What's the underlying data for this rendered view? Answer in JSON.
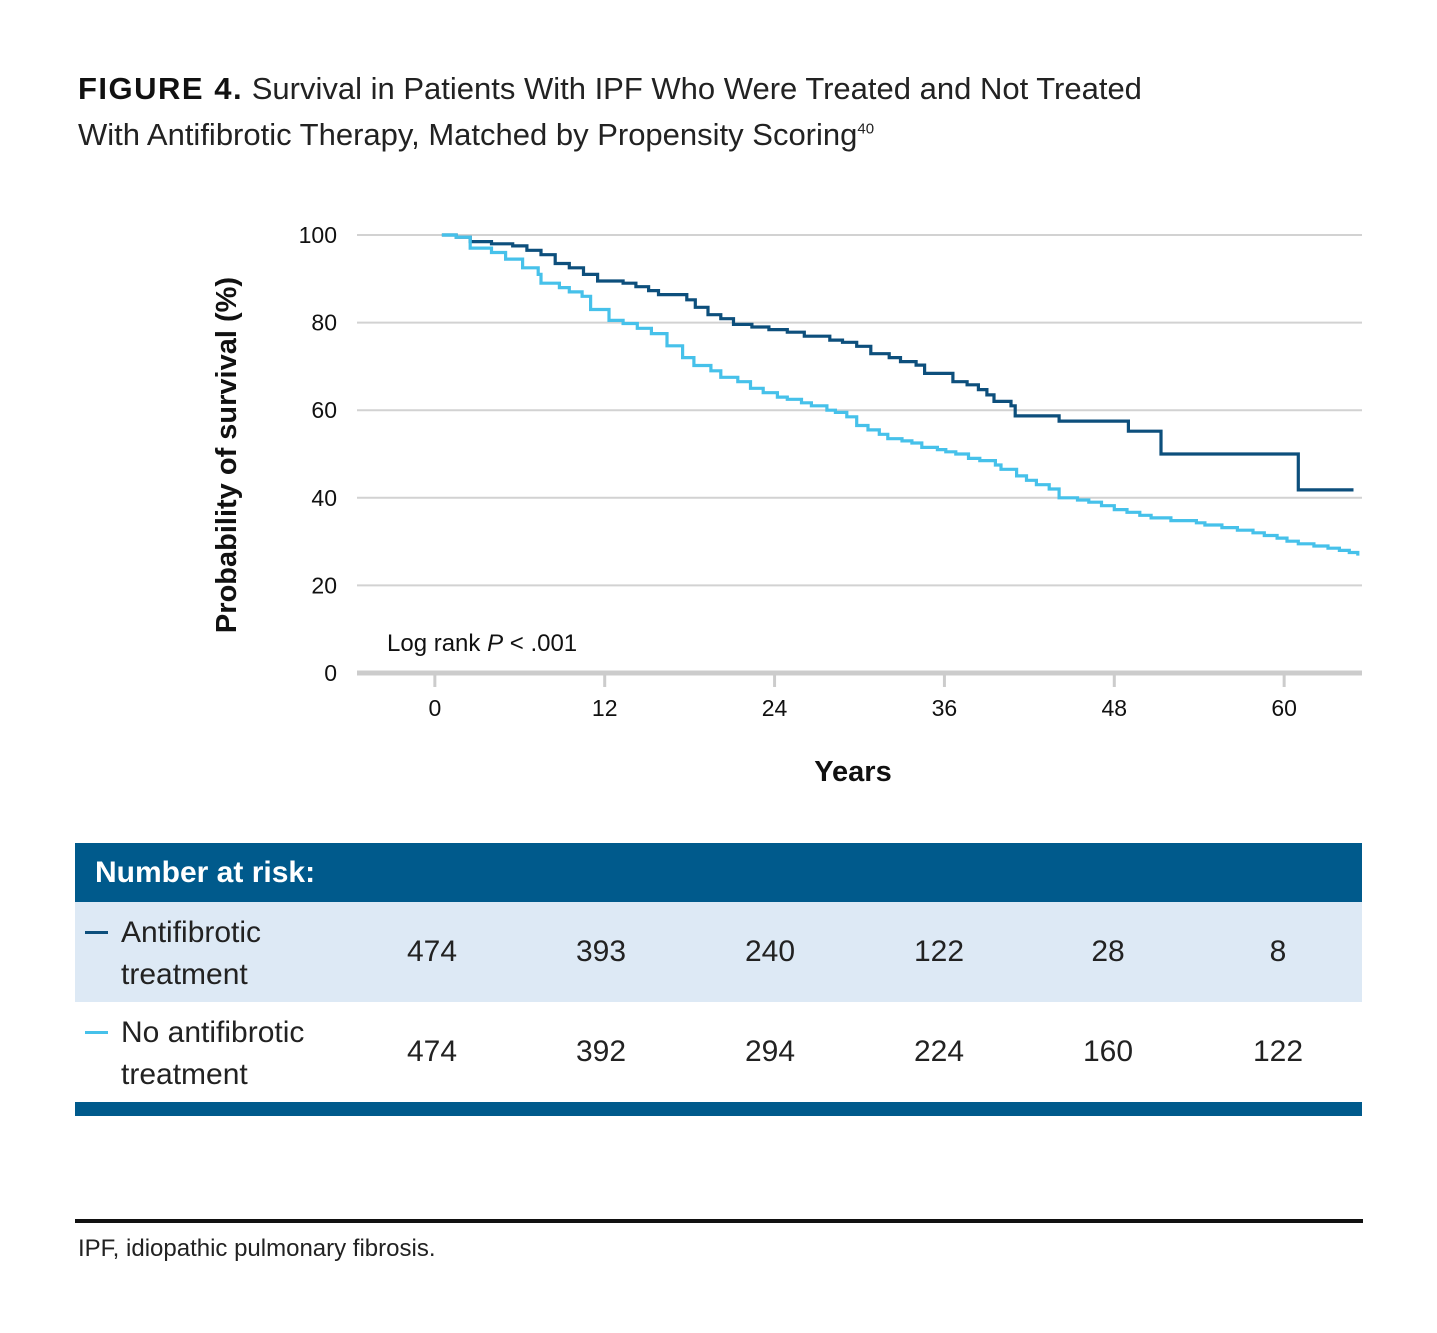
{
  "figure": {
    "label": "FIGURE 4.",
    "title_line1": "Survival in Patients With IPF Who Were Treated and Not Treated",
    "title_line2": "With Antifibrotic Therapy, Matched by Propensity Scoring",
    "reference": "40"
  },
  "colors": {
    "dark_series": "#0d4f7c",
    "light_series": "#46c1ea",
    "grid": "#d2d2d2",
    "axis": "#cccccc",
    "header_bg": "#005a8c",
    "row_shade": "#dde9f5"
  },
  "chart_data": {
    "type": "line",
    "step": true,
    "ylabel": "Probability of survival (%)",
    "xlabel": "Years",
    "xlim": [
      -5.5,
      65.5
    ],
    "ylim": [
      0,
      100
    ],
    "x_ticks": [
      "0",
      "12",
      "24",
      "36",
      "48",
      "60"
    ],
    "y_ticks": [
      "0",
      "20",
      "40",
      "60",
      "80",
      "100"
    ],
    "annotation": {
      "prefix": "Log rank ",
      "p_symbol": "P",
      "suffix": " < .001"
    },
    "series": [
      {
        "name": "Antifibrotic treatment",
        "color": "#0d4f7c",
        "points": [
          [
            0.5,
            100
          ],
          [
            1.5,
            99.5
          ],
          [
            2.5,
            98.5
          ],
          [
            4,
            98
          ],
          [
            5.5,
            97.5
          ],
          [
            6.5,
            96.5
          ],
          [
            7.5,
            95.5
          ],
          [
            8.5,
            93.5
          ],
          [
            9.5,
            92.5
          ],
          [
            10.5,
            91
          ],
          [
            11.5,
            89.5
          ],
          [
            13.3,
            89
          ],
          [
            14.2,
            88.2
          ],
          [
            15.1,
            87.3
          ],
          [
            15.8,
            86.4
          ],
          [
            17.8,
            85.2
          ],
          [
            18.4,
            83.5
          ],
          [
            19.3,
            81.8
          ],
          [
            20.2,
            80.9
          ],
          [
            21.1,
            79.6
          ],
          [
            22.4,
            79
          ],
          [
            23.6,
            78.4
          ],
          [
            24.9,
            77.8
          ],
          [
            26.1,
            76.9
          ],
          [
            27.9,
            76
          ],
          [
            28.8,
            75.5
          ],
          [
            29.8,
            74.6
          ],
          [
            30.8,
            72.9
          ],
          [
            32.1,
            72
          ],
          [
            32.9,
            71.1
          ],
          [
            34.0,
            70.3
          ],
          [
            34.6,
            68.4
          ],
          [
            36.6,
            66.5
          ],
          [
            37.6,
            65.8
          ],
          [
            38.4,
            64.7
          ],
          [
            39.0,
            63.5
          ],
          [
            39.5,
            62
          ],
          [
            40.7,
            61
          ],
          [
            41.0,
            58.7
          ],
          [
            44.1,
            57.5
          ],
          [
            49.0,
            55.2
          ],
          [
            50.7,
            55.2
          ],
          [
            51.3,
            50
          ],
          [
            60.8,
            50
          ],
          [
            61.0,
            41.8
          ],
          [
            64.9,
            41.8
          ]
        ]
      },
      {
        "name": "No antifibrotic treatment",
        "color": "#46c1ea",
        "points": [
          [
            0.5,
            100
          ],
          [
            1.5,
            99.5
          ],
          [
            2.5,
            97
          ],
          [
            4,
            96
          ],
          [
            5,
            94.5
          ],
          [
            6.2,
            92.5
          ],
          [
            7.3,
            91
          ],
          [
            7.5,
            89
          ],
          [
            8.8,
            88
          ],
          [
            9.5,
            87
          ],
          [
            10.4,
            86
          ],
          [
            11.0,
            83
          ],
          [
            12.3,
            80.5
          ],
          [
            13.3,
            79.8
          ],
          [
            14.3,
            78.7
          ],
          [
            15.3,
            77.5
          ],
          [
            16.4,
            74.7
          ],
          [
            17.5,
            72
          ],
          [
            18.3,
            70.2
          ],
          [
            19.5,
            69
          ],
          [
            20.2,
            67.5
          ],
          [
            21.4,
            66.5
          ],
          [
            22.3,
            65
          ],
          [
            23.2,
            64
          ],
          [
            24.2,
            63
          ],
          [
            24.9,
            62.5
          ],
          [
            25.9,
            61.7
          ],
          [
            26.6,
            61
          ],
          [
            27.7,
            60
          ],
          [
            28.3,
            59.5
          ],
          [
            29.1,
            58.5
          ],
          [
            29.8,
            56.5
          ],
          [
            30.6,
            55.5
          ],
          [
            31.4,
            54.5
          ],
          [
            32.0,
            53.5
          ],
          [
            33.0,
            53
          ],
          [
            33.7,
            52.5
          ],
          [
            34.4,
            51.5
          ],
          [
            35.5,
            51
          ],
          [
            36.1,
            50.5
          ],
          [
            36.8,
            50
          ],
          [
            37.7,
            49
          ],
          [
            38.5,
            48.5
          ],
          [
            39.6,
            47.5
          ],
          [
            40.0,
            46.5
          ],
          [
            41.1,
            45
          ],
          [
            41.8,
            44
          ],
          [
            42.5,
            43
          ],
          [
            43.4,
            42
          ],
          [
            44.1,
            40
          ],
          [
            45.4,
            39.5
          ],
          [
            46.2,
            39
          ],
          [
            47.1,
            38.2
          ],
          [
            48.0,
            37.3
          ],
          [
            48.9,
            36.7
          ],
          [
            49.8,
            36
          ],
          [
            50.6,
            35.4
          ],
          [
            52.0,
            34.8
          ],
          [
            53.8,
            34.3
          ],
          [
            54.4,
            33.8
          ],
          [
            55.6,
            33.2
          ],
          [
            56.7,
            32.6
          ],
          [
            57.8,
            32
          ],
          [
            58.6,
            31.4
          ],
          [
            59.5,
            30.8
          ],
          [
            60.2,
            30.1
          ],
          [
            61.0,
            29.5
          ],
          [
            62.1,
            29
          ],
          [
            63.1,
            28.5
          ],
          [
            63.9,
            28
          ],
          [
            64.6,
            27.5
          ],
          [
            65.2,
            26.8
          ]
        ]
      }
    ]
  },
  "risk_table": {
    "header": "Number at risk:",
    "rows": [
      {
        "label_line1": "Antifibrotic",
        "label_line2": "treatment",
        "color": "#0d4f7c",
        "values": [
          "474",
          "393",
          "240",
          "122",
          "28",
          "8"
        ]
      },
      {
        "label_line1": "No antifibrotic",
        "label_line2": "treatment",
        "color": "#46c1ea",
        "values": [
          "474",
          "392",
          "294",
          "224",
          "160",
          "122"
        ]
      }
    ]
  },
  "footnote": "IPF, idiopathic pulmonary fibrosis."
}
